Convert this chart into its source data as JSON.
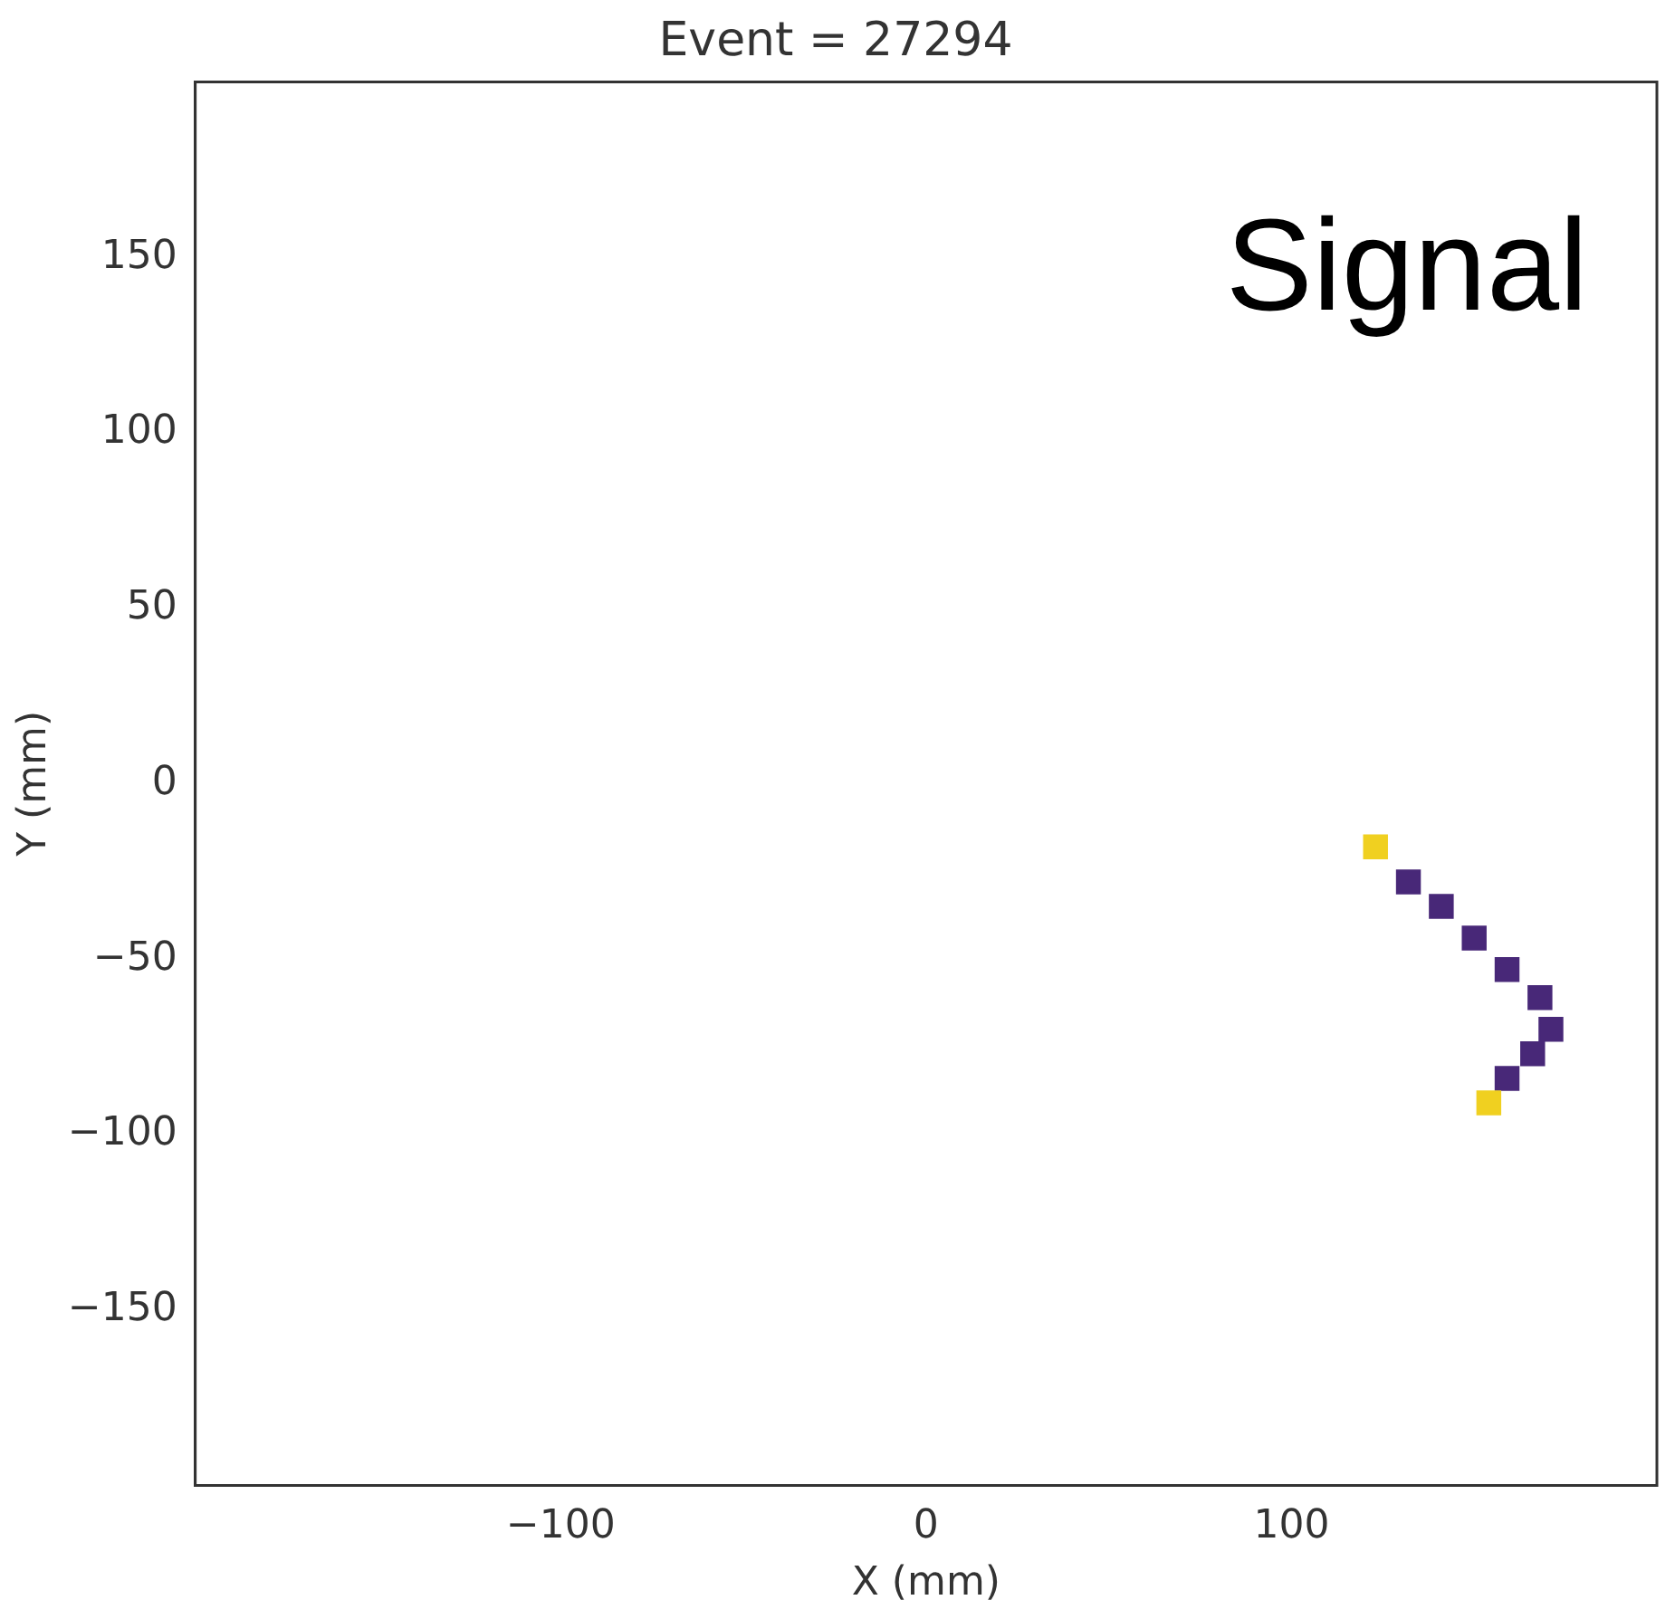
{
  "chart_data": {
    "type": "scatter",
    "title": "Event = 27294",
    "xlabel": "X (mm)",
    "ylabel": "Y (mm)",
    "annotations": [
      "Signal"
    ],
    "x": [
      123,
      132,
      141,
      150,
      159,
      168,
      171,
      166,
      159,
      154
    ],
    "series": [
      {
        "colors": [
          "#f0d020",
          "#482878",
          "#482878",
          "#482878",
          "#482878",
          "#482878",
          "#482878",
          "#482878",
          "#482878",
          "#f0d020"
        ],
        "values": [
          -18,
          -28,
          -35,
          -44,
          -53,
          -61,
          -70,
          -77,
          -84,
          -91
        ]
      }
    ],
    "xlim": [
      -200,
      200
    ],
    "ylim": [
      -200,
      200
    ],
    "xticks": [
      -100,
      0,
      100
    ],
    "yticks": [
      -150,
      -100,
      -50,
      0,
      50,
      100,
      150
    ],
    "marker": "square",
    "grid": false,
    "legend": false
  }
}
